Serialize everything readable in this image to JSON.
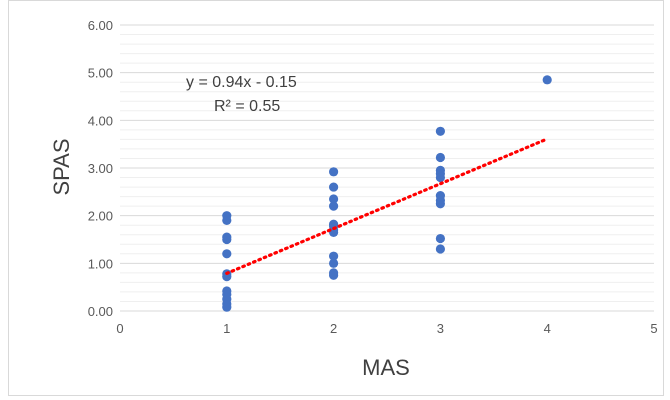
{
  "chart_data": {
    "type": "scatter",
    "title": "",
    "xlabel": "MAS",
    "ylabel": "SPAS",
    "xlim": [
      0,
      5
    ],
    "ylim": [
      0,
      6
    ],
    "x_ticks": [
      "0",
      "1",
      "2",
      "3",
      "4",
      "5"
    ],
    "y_ticks": [
      "0.00",
      "1.00",
      "2.00",
      "3.00",
      "4.00",
      "5.00",
      "6.00"
    ],
    "grid": true,
    "point_color": "#4472c4",
    "trend_color": "#ff0000",
    "series": [
      {
        "points": [
          [
            1,
            2.0
          ],
          [
            1,
            1.9
          ],
          [
            1,
            1.55
          ],
          [
            1,
            1.5
          ],
          [
            1,
            1.2
          ],
          [
            1,
            0.78
          ],
          [
            1,
            0.72
          ],
          [
            1,
            0.42
          ],
          [
            1,
            0.35
          ],
          [
            1,
            0.25
          ],
          [
            1,
            0.15
          ],
          [
            1,
            0.08
          ],
          [
            2,
            2.92
          ],
          [
            2,
            2.6
          ],
          [
            2,
            2.35
          ],
          [
            2,
            2.2
          ],
          [
            2,
            1.82
          ],
          [
            2,
            1.78
          ],
          [
            2,
            1.7
          ],
          [
            2,
            1.65
          ],
          [
            2,
            1.15
          ],
          [
            2,
            1.0
          ],
          [
            2,
            0.8
          ],
          [
            2,
            0.75
          ],
          [
            3,
            3.77
          ],
          [
            3,
            3.22
          ],
          [
            3,
            2.95
          ],
          [
            3,
            2.88
          ],
          [
            3,
            2.8
          ],
          [
            3,
            2.42
          ],
          [
            3,
            2.32
          ],
          [
            3,
            2.25
          ],
          [
            3,
            1.52
          ],
          [
            3,
            1.3
          ],
          [
            4,
            4.85
          ]
        ]
      }
    ],
    "trendline": {
      "type": "linear",
      "slope": 0.94,
      "intercept": -0.15,
      "x_range": [
        1,
        4
      ],
      "equation": "y = 0.94x - 0.15",
      "r_squared": "R² = 0.55"
    }
  }
}
